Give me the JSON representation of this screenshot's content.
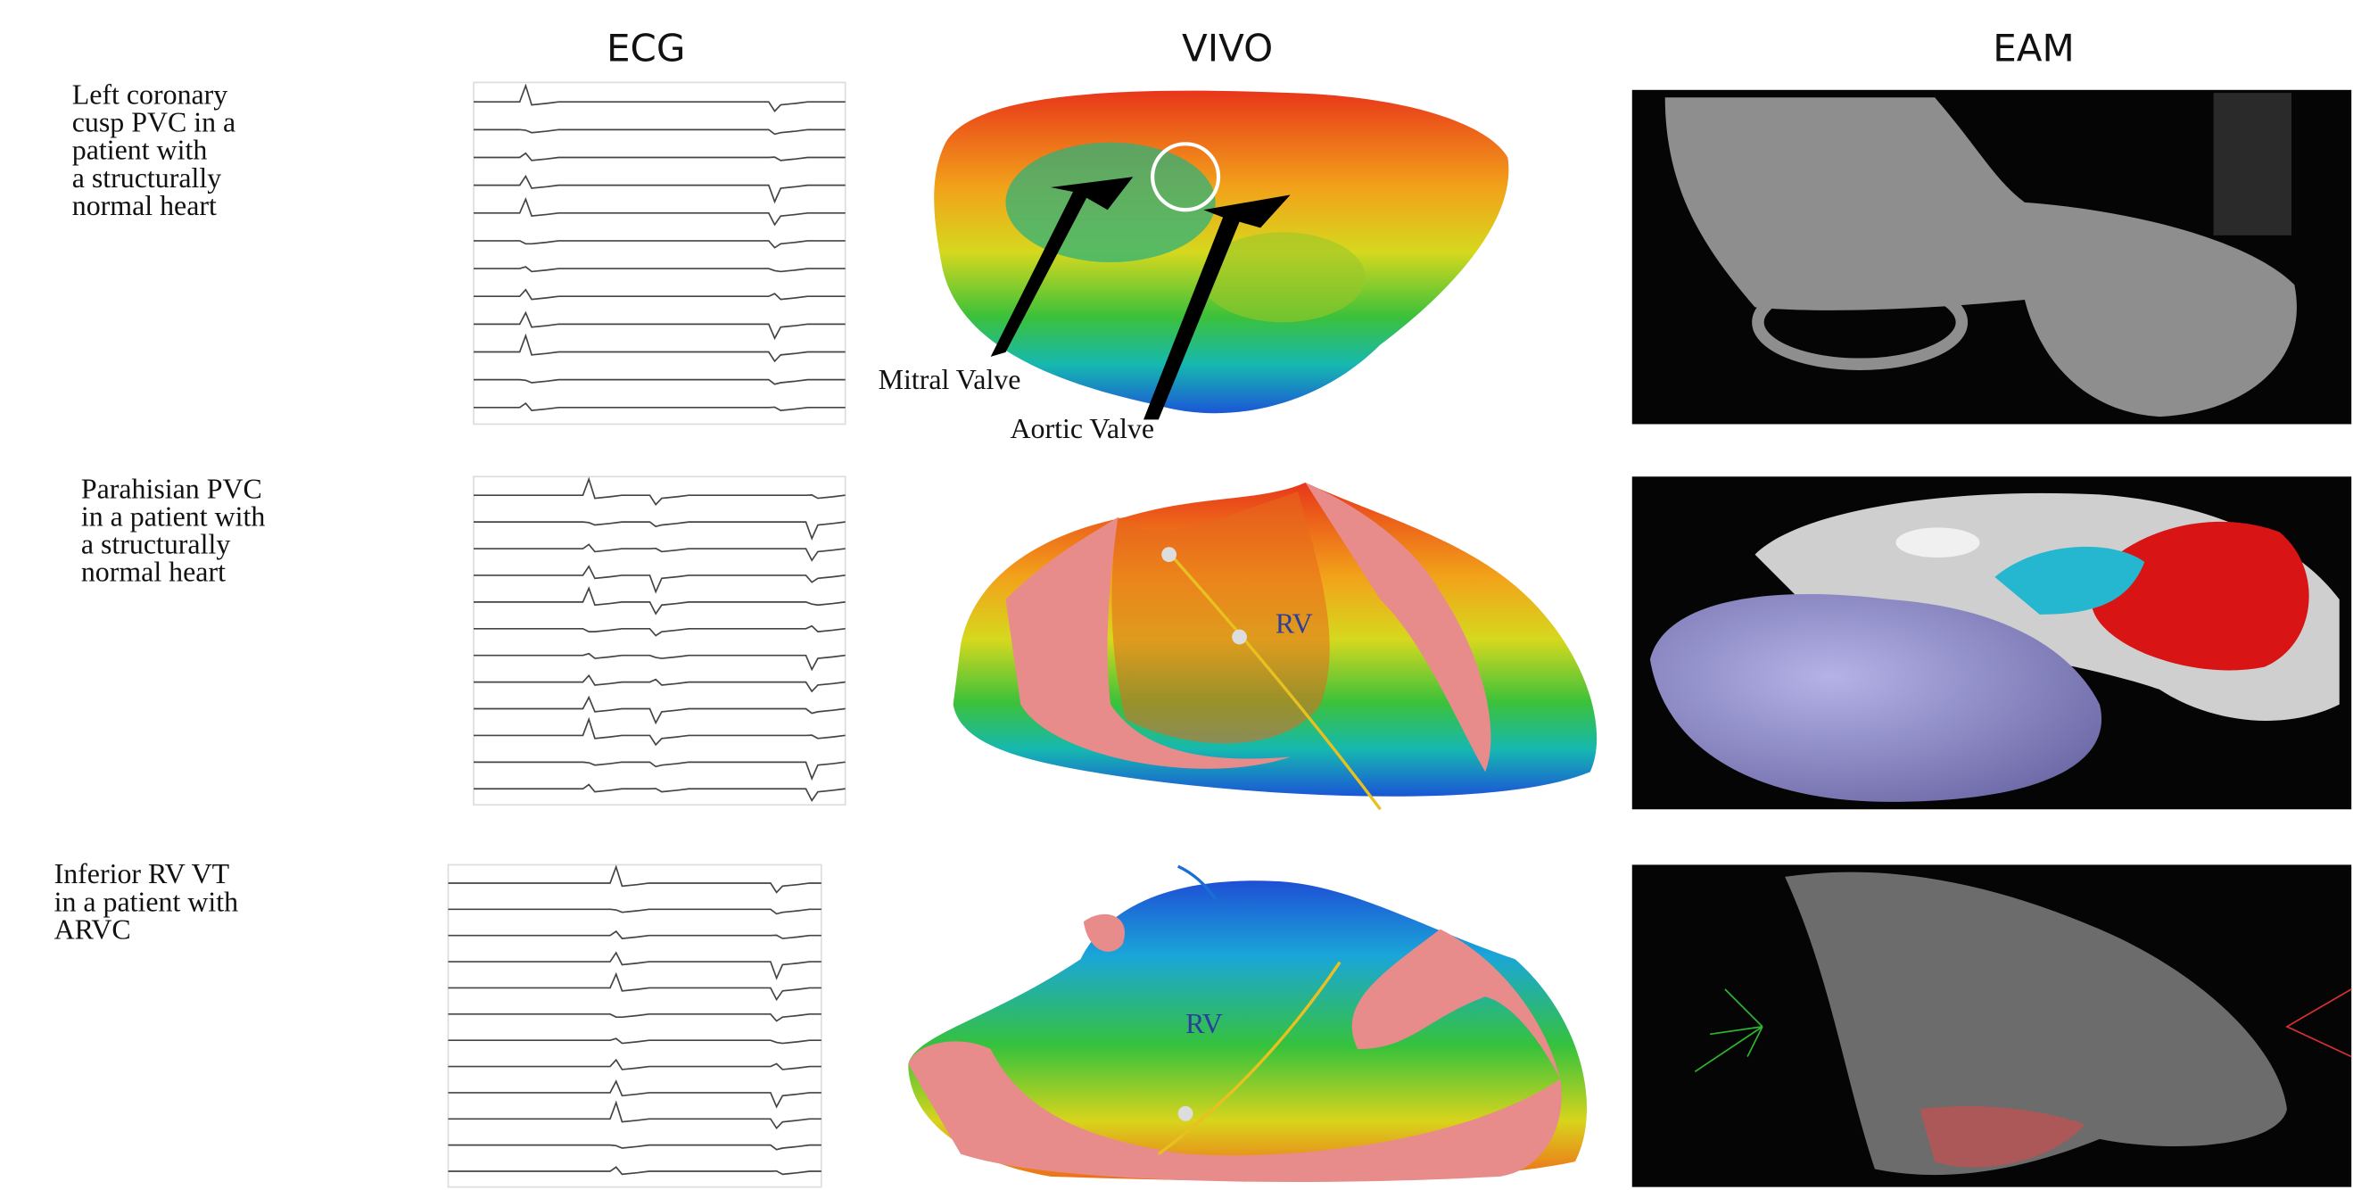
{
  "columns": [
    "ECG",
    "VIVO",
    "EAM"
  ],
  "rows": [
    {
      "label_lines": [
        "Left coronary",
        "cusp PVC in a",
        "patient with",
        "a structurally",
        "normal heart"
      ],
      "annotations": [
        "Mitral Valve",
        "Aortic Valve"
      ]
    },
    {
      "label_lines": [
        "Parahisian PVC",
        "in a patient with",
        "a structurally",
        "normal heart"
      ],
      "annotations": [
        "RV"
      ]
    },
    {
      "label_lines": [
        "Inferior RV VT",
        "in a patient with",
        "ARVC"
      ],
      "annotations": [
        "RV"
      ]
    }
  ]
}
